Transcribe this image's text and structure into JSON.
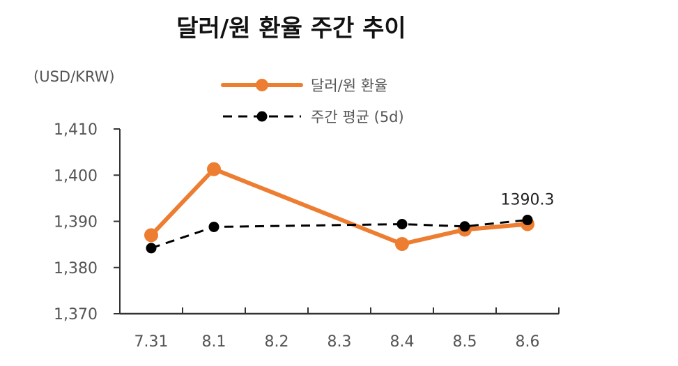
{
  "chart_data": {
    "type": "line",
    "title": "달러/원 환율 주간 추이",
    "ylabel": "(USD/KRW)",
    "xlabel": "",
    "categories": [
      "7.31",
      "8.1",
      "8.2",
      "8.3",
      "8.4",
      "8.5",
      "8.6"
    ],
    "ylim": [
      1370,
      1410
    ],
    "yticks": [
      1370,
      1380,
      1390,
      1400,
      1410
    ],
    "ytick_labels": [
      "1,370",
      "1,380",
      "1,390",
      "1,400",
      "1,410"
    ],
    "legend_position": "top",
    "grid": false,
    "series": [
      {
        "name": "달러/원 환율",
        "color": "#ED7D31",
        "line_style": "solid",
        "marker": "circle",
        "values": [
          1387,
          1401.3,
          null,
          null,
          1385.1,
          1388.2,
          1389.4
        ]
      },
      {
        "name": "주간 평균 (5d)",
        "color": "#000000",
        "line_style": "dashed",
        "marker": "circle",
        "values": [
          1384.2,
          1388.8,
          null,
          null,
          1389.4,
          1388.9,
          1390.3
        ]
      }
    ],
    "annotations": [
      {
        "series": 1,
        "point": 6,
        "text": "1390.3"
      }
    ]
  }
}
